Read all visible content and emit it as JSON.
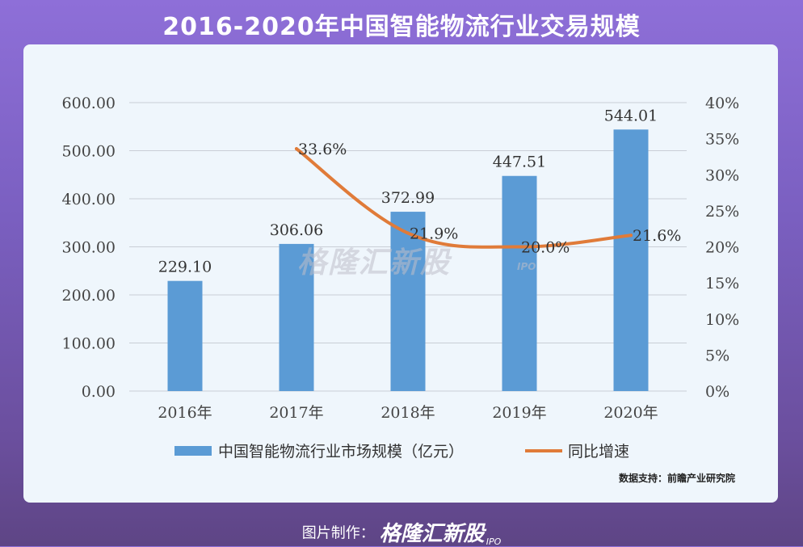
{
  "header": {
    "title": "2016-2020年中国智能物流行业交易规模"
  },
  "chart_data": {
    "type": "bar",
    "categories": [
      "2016年",
      "2017年",
      "2018年",
      "2019年",
      "2020年"
    ],
    "series": [
      {
        "name": "中国智能物流行业市场规模（亿元）",
        "type": "bar",
        "axis": "left",
        "values": [
          229.1,
          306.06,
          372.99,
          447.51,
          544.01
        ],
        "labels": [
          "229.10",
          "306.06",
          "372.99",
          "447.51",
          "544.01"
        ]
      },
      {
        "name": "同比增速",
        "type": "line",
        "axis": "right",
        "values": [
          null,
          33.6,
          21.9,
          20.0,
          21.6
        ],
        "labels": [
          "",
          "33.6%",
          "21.9%",
          "20.0%",
          "21.6%"
        ]
      }
    ],
    "left_ylim": [
      0,
      600
    ],
    "left_ticks": [
      "0.00",
      "100.00",
      "200.00",
      "300.00",
      "400.00",
      "500.00",
      "600.00"
    ],
    "right_ylim": [
      0,
      40
    ],
    "right_ticks": [
      "0%",
      "5%",
      "10%",
      "15%",
      "20%",
      "25%",
      "30%",
      "35%",
      "40%"
    ],
    "grid": true,
    "legend_position": "bottom",
    "colors": {
      "bar": "#5b9bd5",
      "line": "#e07b39"
    }
  },
  "source": "数据支持：前瞻产业研究院",
  "watermark": {
    "text": "格隆汇新股",
    "sub": "IPO"
  },
  "footer": {
    "credit": "图片制作：",
    "brand": "格隆汇新股",
    "sub": "IPO"
  }
}
